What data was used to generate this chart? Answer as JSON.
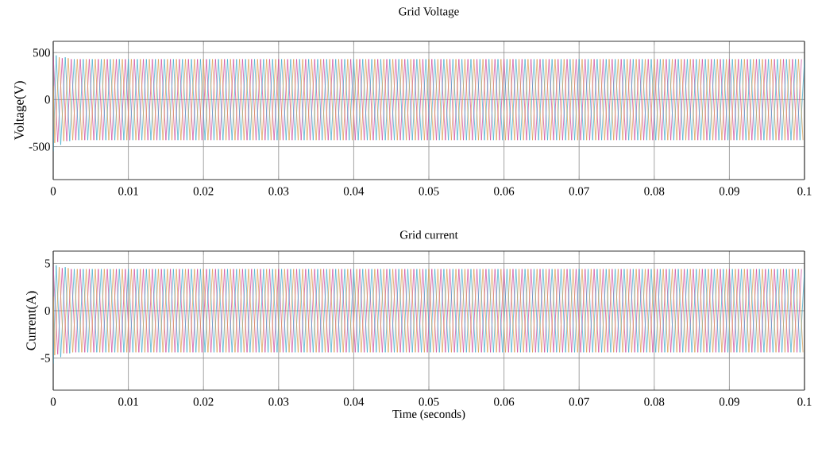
{
  "chart_data": [
    {
      "type": "line",
      "title": "Grid Voltage",
      "ylabel": "Voltage(V)",
      "xlim": [
        0,
        0.1
      ],
      "ylim": [
        -850,
        620
      ],
      "xticks": [
        0,
        0.01,
        0.02,
        0.03,
        0.04,
        0.05,
        0.06,
        0.07,
        0.08,
        0.09,
        0.1
      ],
      "yticks": [
        -500,
        0,
        500
      ],
      "grid": true,
      "series": [
        {
          "color": "#cc4499",
          "x": [
            0,
            0.0006,
            0.0012,
            0.0018,
            0.0024,
            0.003,
            0.0036,
            0.0042,
            0.0048,
            0.0054,
            0.006,
            0.0066,
            0.0072,
            0.0078,
            0.0084,
            0.009,
            0.0096,
            0.0102,
            0.0108,
            0.0114,
            0.012,
            0.0126,
            0.0132,
            0.0138,
            0.0144,
            0.015,
            0.0156,
            0.0162,
            0.0168,
            0.0174,
            0.018,
            0.0186,
            0.0192,
            0.0198,
            0.0204,
            0.021,
            0.0216,
            0.0222,
            0.0228,
            0.0234,
            0.024,
            0.0246,
            0.0252,
            0.0258,
            0.0264,
            0.027,
            0.0276,
            0.0282,
            0.0288,
            0.0294,
            0.03,
            0.0306,
            0.0312,
            0.0318,
            0.0324,
            0.033,
            0.0336,
            0.0342,
            0.0348,
            0.0354,
            0.036,
            0.0366,
            0.0372,
            0.0378,
            0.0384,
            0.039,
            0.0396,
            0.0402,
            0.0408,
            0.0414,
            0.042,
            0.0426,
            0.0432,
            0.0438,
            0.0444,
            0.045,
            0.0456,
            0.0462,
            0.0468,
            0.0474,
            0.048,
            0.0486,
            0.0492,
            0.0498,
            0.0504,
            0.051,
            0.0516,
            0.0522,
            0.0528,
            0.0534,
            0.054,
            0.0546,
            0.0552,
            0.0558,
            0.0564,
            0.057,
            0.0576,
            0.0582,
            0.0588,
            0.0594,
            0.06,
            0.0606,
            0.0612,
            0.0618,
            0.0624,
            0.063,
            0.0636,
            0.0642,
            0.0648,
            0.0654,
            0.066,
            0.0666,
            0.0672,
            0.0678,
            0.0684,
            0.069,
            0.0696,
            0.0702,
            0.0708,
            0.0714,
            0.072,
            0.0726,
            0.0732,
            0.0738,
            0.0744,
            0.075,
            0.0756,
            0.0762,
            0.0768,
            0.0774,
            0.078,
            0.0786,
            0.0792,
            0.0798,
            0.0804,
            0.081,
            0.0816,
            0.0822,
            0.0828,
            0.0834,
            0.084,
            0.0846,
            0.0852,
            0.0858,
            0.0864,
            0.087,
            0.0876,
            0.0882,
            0.0888,
            0.0894,
            0.09,
            0.0906,
            0.0912,
            0.0918,
            0.0924,
            0.093,
            0.0936,
            0.0942,
            0.0948,
            0.0954,
            0.096,
            0.0966,
            0.0972,
            0.0978,
            0.0984,
            0.099,
            0.0996
          ],
          "values": [
            460,
            -450,
            440,
            -440,
            430,
            -430,
            430,
            -430,
            430,
            -430,
            430,
            -430,
            430,
            -430,
            430,
            -430,
            430,
            -430,
            430,
            -430,
            430,
            -430,
            430,
            -430,
            430,
            -430,
            430,
            -430,
            430,
            -430,
            430,
            -430,
            430,
            -430,
            430,
            -430,
            430,
            -430,
            430,
            -430,
            430,
            -430,
            430,
            -430,
            430,
            -430,
            430,
            -430,
            430,
            -430,
            430,
            -430,
            430,
            -430,
            430,
            -430,
            430,
            -430,
            430,
            -430,
            430,
            -430,
            430,
            -430,
            430,
            -430,
            430,
            -430,
            430,
            -430,
            430,
            -430,
            430,
            -430,
            430,
            -430,
            430,
            -430,
            430,
            -430,
            430,
            -430,
            430,
            -430,
            430,
            -430,
            430,
            -430,
            430,
            -430,
            430,
            -430,
            430,
            -430,
            430,
            -430,
            430,
            -430,
            430,
            -430,
            430,
            -430,
            430,
            -430,
            430,
            -430,
            430,
            -430,
            430,
            -430,
            430,
            -430,
            430,
            -430,
            430,
            -430,
            430,
            -430,
            430,
            -430,
            430,
            -430,
            430,
            -430,
            430,
            -430,
            430,
            -430,
            430,
            -430,
            430,
            -430,
            430,
            -430,
            430,
            -430,
            430,
            -430,
            430,
            -430,
            430,
            -430,
            430,
            -430,
            430,
            -430,
            430,
            -430,
            430,
            -430,
            430,
            -430,
            430,
            -430,
            430,
            -430,
            430,
            -430,
            430,
            -430,
            430,
            -430,
            430,
            -430,
            430,
            -430,
            430
          ]
        },
        {
          "color": "#3aa8c8",
          "x": [
            0,
            0.0004,
            0.001,
            0.0016,
            0.0022,
            0.0028,
            0.0034,
            0.004,
            0.0046,
            0.0052,
            0.0058,
            0.0064,
            0.007,
            0.0076,
            0.0082,
            0.0088,
            0.0094,
            0.01,
            0.0106,
            0.0112,
            0.0118,
            0.0124,
            0.013,
            0.0136,
            0.0142,
            0.0148,
            0.0154,
            0.016,
            0.0166,
            0.0172,
            0.0178,
            0.0184,
            0.019,
            0.0196,
            0.0202,
            0.0208,
            0.0214,
            0.022,
            0.0226,
            0.0232,
            0.0238,
            0.0244,
            0.025,
            0.0256,
            0.0262,
            0.0268,
            0.0274,
            0.028,
            0.0286,
            0.0292,
            0.0298,
            0.0304,
            0.031,
            0.0316,
            0.0322,
            0.0328,
            0.0334,
            0.034,
            0.0346,
            0.0352,
            0.0358,
            0.0364,
            0.037,
            0.0376,
            0.0382,
            0.0388,
            0.0394,
            0.04,
            0.0406,
            0.0412,
            0.0418,
            0.0424,
            0.043,
            0.0436,
            0.0442,
            0.0448,
            0.0454,
            0.046,
            0.0466,
            0.0472,
            0.0478,
            0.0484,
            0.049,
            0.0496,
            0.0502,
            0.0508,
            0.0514,
            0.052,
            0.0526,
            0.0532,
            0.0538,
            0.0544,
            0.055,
            0.0556,
            0.0562,
            0.0568,
            0.0574,
            0.058,
            0.0586,
            0.0592,
            0.0598,
            0.0604,
            0.061,
            0.0616,
            0.0622,
            0.0628,
            0.0634,
            0.064,
            0.0646,
            0.0652,
            0.0658,
            0.0664,
            0.067,
            0.0676,
            0.0682,
            0.0688,
            0.0694,
            0.07,
            0.0706,
            0.0712,
            0.0718,
            0.0724,
            0.073,
            0.0736,
            0.0742,
            0.0748,
            0.0754,
            0.076,
            0.0766,
            0.0772,
            0.0778,
            0.0784,
            0.079,
            0.0796,
            0.0802,
            0.0808,
            0.0814,
            0.082,
            0.0826,
            0.0832,
            0.0838,
            0.0844,
            0.085,
            0.0856,
            0.0862,
            0.0868,
            0.0874,
            0.088,
            0.0886,
            0.0892,
            0.0898,
            0.0904,
            0.091,
            0.0916,
            0.0922,
            0.0928,
            0.0934,
            0.094,
            0.0946,
            0.0952,
            0.0958,
            0.0964,
            0.097,
            0.0976,
            0.0982,
            0.0988,
            0.0994,
            0.1
          ],
          "values": [
            -550,
            470,
            -480,
            450,
            -440,
            430,
            -430,
            430,
            -430,
            430,
            -430,
            430,
            -430,
            430,
            -430,
            430,
            -430,
            430,
            -430,
            430,
            -430,
            430,
            -430,
            430,
            -430,
            430,
            -430,
            430,
            -430,
            430,
            -430,
            430,
            -430,
            430,
            -430,
            430,
            -430,
            430,
            -430,
            430,
            -430,
            430,
            -430,
            430,
            -430,
            430,
            -430,
            430,
            -430,
            430,
            -430,
            430,
            -430,
            430,
            -430,
            430,
            -430,
            430,
            -430,
            430,
            -430,
            430,
            -430,
            430,
            -430,
            430,
            -430,
            430,
            -430,
            430,
            -430,
            430,
            -430,
            430,
            -430,
            430,
            -430,
            430,
            -430,
            430,
            -430,
            430,
            -430,
            430,
            -430,
            430,
            -430,
            430,
            -430,
            430,
            -430,
            430,
            -430,
            430,
            -430,
            430,
            -430,
            430,
            -430,
            430,
            -430,
            430,
            -430,
            430,
            -430,
            430,
            -430,
            430,
            -430,
            430,
            -430,
            430,
            -430,
            430,
            -430,
            430,
            -430,
            430,
            -430,
            430,
            -430,
            430,
            -430,
            430,
            -430,
            430,
            -430,
            430,
            -430,
            430,
            -430,
            430,
            -430,
            430,
            -430,
            430,
            -430,
            430,
            -430,
            430,
            -430,
            430,
            -430,
            430,
            -430,
            430,
            -430,
            430,
            -430,
            430,
            -430,
            430,
            -430,
            430,
            -430,
            430,
            -430,
            430,
            -430,
            430,
            -430,
            430,
            -430,
            430,
            -430,
            430,
            -430,
            430
          ]
        },
        {
          "color": "#d89a4a",
          "x": [
            0,
            0.0002,
            0.0008,
            0.0014,
            0.002,
            0.0026,
            0.0032,
            0.0038,
            0.0044,
            0.005,
            0.0056,
            0.0062,
            0.0068,
            0.0074,
            0.008,
            0.0086,
            0.0092,
            0.0098,
            0.0104,
            0.011,
            0.0116,
            0.0122,
            0.0128,
            0.0134,
            0.014,
            0.0146,
            0.0152,
            0.0158,
            0.0164,
            0.017,
            0.0176,
            0.0182,
            0.0188,
            0.0194,
            0.02,
            0.0206,
            0.0212,
            0.0218,
            0.0224,
            0.023,
            0.0236,
            0.0242,
            0.0248,
            0.0254,
            0.026,
            0.0266,
            0.0272,
            0.0278,
            0.0284,
            0.029,
            0.0296,
            0.0302,
            0.0308,
            0.0314,
            0.032,
            0.0326,
            0.0332,
            0.0338,
            0.0344,
            0.035,
            0.0356,
            0.0362,
            0.0368,
            0.0374,
            0.038,
            0.0386,
            0.0392,
            0.0398,
            0.0404,
            0.041,
            0.0416,
            0.0422,
            0.0428,
            0.0434,
            0.044,
            0.0446,
            0.0452,
            0.0458,
            0.0464,
            0.047,
            0.0476,
            0.0482,
            0.0488,
            0.0494,
            0.05,
            0.0506,
            0.0512,
            0.0518,
            0.0524,
            0.053,
            0.0536,
            0.0542,
            0.0548,
            0.0554,
            0.056,
            0.0566,
            0.0572,
            0.0578,
            0.0584,
            0.059,
            0.0596,
            0.0602,
            0.0608,
            0.0614,
            0.062,
            0.0626,
            0.0632,
            0.0638,
            0.0644,
            0.065,
            0.0656,
            0.0662,
            0.0668,
            0.0674,
            0.068,
            0.0686,
            0.0692,
            0.0698,
            0.0704,
            0.071,
            0.0716,
            0.0722,
            0.0728,
            0.0734,
            0.074,
            0.0746,
            0.0752,
            0.0758,
            0.0764,
            0.077,
            0.0776,
            0.0782,
            0.0788,
            0.0794,
            0.08,
            0.0806,
            0.0812,
            0.0818,
            0.0824,
            0.083,
            0.0836,
            0.0842,
            0.0848,
            0.0854,
            0.086,
            0.0866,
            0.0872,
            0.0878,
            0.0884,
            0.089,
            0.0896,
            0.0902,
            0.0908,
            0.0914,
            0.092,
            0.0926,
            0.0932,
            0.0938,
            0.0944,
            0.095,
            0.0956,
            0.0962,
            0.0968,
            0.0974,
            0.098,
            0.0986,
            0.0992,
            0.0998
          ],
          "values": [
            150,
            -460,
            450,
            -440,
            440,
            -430,
            430,
            -430,
            430,
            -430,
            430,
            -430,
            430,
            -430,
            430,
            -430,
            430,
            -430,
            430,
            -430,
            430,
            -430,
            430,
            -430,
            430,
            -430,
            430,
            -430,
            430,
            -430,
            430,
            -430,
            430,
            -430,
            430,
            -430,
            430,
            -430,
            430,
            -430,
            430,
            -430,
            430,
            -430,
            430,
            -430,
            430,
            -430,
            430,
            -430,
            430,
            -430,
            430,
            -430,
            430,
            -430,
            430,
            -430,
            430,
            -430,
            430,
            -430,
            430,
            -430,
            430,
            -430,
            430,
            -430,
            430,
            -430,
            430,
            -430,
            430,
            -430,
            430,
            -430,
            430,
            -430,
            430,
            -430,
            430,
            -430,
            430,
            -430,
            430,
            -430,
            430,
            -430,
            430,
            -430,
            430,
            -430,
            430,
            -430,
            430,
            -430,
            430,
            -430,
            430,
            -430,
            430,
            -430,
            430,
            -430,
            430,
            -430,
            430,
            -430,
            430,
            -430,
            430,
            -430,
            430,
            -430,
            430,
            -430,
            430,
            -430,
            430,
            -430,
            430,
            -430,
            430,
            -430,
            430,
            -430,
            430,
            -430,
            430,
            -430,
            430,
            -430,
            430,
            -430,
            430,
            -430,
            430,
            -430,
            430,
            -430,
            430,
            -430,
            430,
            -430,
            430,
            -430,
            430,
            -430,
            430,
            -430,
            430,
            -430,
            430,
            -430,
            430,
            -430,
            430,
            -430,
            430,
            -430,
            430,
            -430,
            430,
            -430,
            430,
            -430,
            430,
            -430
          ]
        }
      ]
    },
    {
      "type": "line",
      "title": "Grid current",
      "ylabel": "Current(A)",
      "xlabel": "Time (seconds)",
      "xlim": [
        0,
        0.1
      ],
      "ylim": [
        -8.4,
        6.3
      ],
      "xticks": [
        0,
        0.01,
        0.02,
        0.03,
        0.04,
        0.05,
        0.06,
        0.07,
        0.08,
        0.09,
        0.1
      ],
      "yticks": [
        -5,
        0,
        5
      ],
      "grid": true,
      "series": [
        {
          "color": "#cc4499",
          "x": [
            0,
            0.0006,
            0.0012,
            0.0018,
            0.0024,
            0.003,
            0.0036,
            0.0042,
            0.0048,
            0.0054,
            0.006,
            0.0066,
            0.0072,
            0.0078,
            0.0084,
            0.009,
            0.0096,
            0.0102,
            0.0108,
            0.0114,
            0.012,
            0.0126,
            0.0132,
            0.0138,
            0.0144,
            0.015,
            0.0156,
            0.0162,
            0.0168,
            0.0174,
            0.018,
            0.0186,
            0.0192,
            0.0198,
            0.0204,
            0.021,
            0.0216,
            0.0222,
            0.0228,
            0.0234,
            0.024,
            0.0246,
            0.0252,
            0.0258,
            0.0264,
            0.027,
            0.0276,
            0.0282,
            0.0288,
            0.0294,
            0.03,
            0.0306,
            0.0312,
            0.0318,
            0.0324,
            0.033,
            0.0336,
            0.0342,
            0.0348,
            0.0354,
            0.036,
            0.0366,
            0.0372,
            0.0378,
            0.0384,
            0.039,
            0.0396,
            0.0402,
            0.0408,
            0.0414,
            0.042,
            0.0426,
            0.0432,
            0.0438,
            0.0444,
            0.045,
            0.0456,
            0.0462,
            0.0468,
            0.0474,
            0.048,
            0.0486,
            0.0492,
            0.0498,
            0.0504,
            0.051,
            0.0516,
            0.0522,
            0.0528,
            0.0534,
            0.054,
            0.0546,
            0.0552,
            0.0558,
            0.0564,
            0.057,
            0.0576,
            0.0582,
            0.0588,
            0.0594,
            0.06,
            0.0606,
            0.0612,
            0.0618,
            0.0624,
            0.063,
            0.0636,
            0.0642,
            0.0648,
            0.0654,
            0.066,
            0.0666,
            0.0672,
            0.0678,
            0.0684,
            0.069,
            0.0696,
            0.0702,
            0.0708,
            0.0714,
            0.072,
            0.0726,
            0.0732,
            0.0738,
            0.0744,
            0.075,
            0.0756,
            0.0762,
            0.0768,
            0.0774,
            0.078,
            0.0786,
            0.0792,
            0.0798,
            0.0804,
            0.081,
            0.0816,
            0.0822,
            0.0828,
            0.0834,
            0.084,
            0.0846,
            0.0852,
            0.0858,
            0.0864,
            0.087,
            0.0876,
            0.0882,
            0.0888,
            0.0894,
            0.09,
            0.0906,
            0.0912,
            0.0918,
            0.0924,
            0.093,
            0.0936,
            0.0942,
            0.0948,
            0.0954,
            0.096,
            0.0966,
            0.0972,
            0.0978,
            0.0984,
            0.099,
            0.0996
          ],
          "values": [
            4.7,
            -4.6,
            4.5,
            -4.5,
            4.4,
            -4.4,
            4.4,
            -4.4,
            4.4,
            -4.4,
            4.4,
            -4.4,
            4.4,
            -4.4,
            4.4,
            -4.4,
            4.4,
            -4.4,
            4.4,
            -4.4,
            4.4,
            -4.4,
            4.4,
            -4.4,
            4.4,
            -4.4,
            4.4,
            -4.4,
            4.4,
            -4.4,
            4.4,
            -4.4,
            4.4,
            -4.4,
            4.4,
            -4.4,
            4.4,
            -4.4,
            4.4,
            -4.4,
            4.4,
            -4.4,
            4.4,
            -4.4,
            4.4,
            -4.4,
            4.4,
            -4.4,
            4.4,
            -4.4,
            4.4,
            -4.4,
            4.4,
            -4.4,
            4.4,
            -4.4,
            4.4,
            -4.4,
            4.4,
            -4.4,
            4.4,
            -4.4,
            4.4,
            -4.4,
            4.4,
            -4.4,
            4.4,
            -4.4,
            4.4,
            -4.4,
            4.4,
            -4.4,
            4.4,
            -4.4,
            4.4,
            -4.4,
            4.4,
            -4.4,
            4.4,
            -4.4,
            4.4,
            -4.4,
            4.4,
            -4.4,
            4.4,
            -4.4,
            4.4,
            -4.4,
            4.4,
            -4.4,
            4.4,
            -4.4,
            4.4,
            -4.4,
            4.4,
            -4.4,
            4.4,
            -4.4,
            4.4,
            -4.4,
            4.4,
            -4.4,
            4.4,
            -4.4,
            4.4,
            -4.4,
            4.4,
            -4.4,
            4.4,
            -4.4,
            4.4,
            -4.4,
            4.4,
            -4.4,
            4.4,
            -4.4,
            4.4,
            -4.4,
            4.4,
            -4.4,
            4.4,
            -4.4,
            4.4,
            -4.4,
            4.4,
            -4.4,
            4.4,
            -4.4,
            4.4,
            -4.4,
            4.4,
            -4.4,
            4.4,
            -4.4,
            4.4,
            -4.4,
            4.4,
            -4.4,
            4.4,
            -4.4,
            4.4,
            -4.4,
            4.4,
            -4.4,
            4.4,
            -4.4,
            4.4,
            -4.4,
            4.4,
            -4.4,
            4.4,
            -4.4,
            4.4,
            -4.4,
            4.4,
            -4.4,
            4.4,
            -4.4,
            4.4,
            -4.4,
            4.4,
            -4.4,
            4.4,
            -4.4,
            4.4,
            -4.4,
            4.4
          ]
        },
        {
          "color": "#3aa8c8",
          "x": [
            0,
            0.0004,
            0.001,
            0.0016,
            0.0022,
            0.0028,
            0.0034,
            0.004,
            0.0046,
            0.0052,
            0.0058,
            0.0064,
            0.007,
            0.0076,
            0.0082,
            0.0088,
            0.0094,
            0.01,
            0.0106,
            0.0112,
            0.0118,
            0.0124,
            0.013,
            0.0136,
            0.0142,
            0.0148,
            0.0154,
            0.016,
            0.0166,
            0.0172,
            0.0178,
            0.0184,
            0.019,
            0.0196,
            0.0202,
            0.0208,
            0.0214,
            0.022,
            0.0226,
            0.0232,
            0.0238,
            0.0244,
            0.025,
            0.0256,
            0.0262,
            0.0268,
            0.0274,
            0.028,
            0.0286,
            0.0292,
            0.0298,
            0.0304,
            0.031,
            0.0316,
            0.0322,
            0.0328,
            0.0334,
            0.034,
            0.0346,
            0.0352,
            0.0358,
            0.0364,
            0.037,
            0.0376,
            0.0382,
            0.0388,
            0.0394,
            0.04,
            0.0406,
            0.0412,
            0.0418,
            0.0424,
            0.043,
            0.0436,
            0.0442,
            0.0448,
            0.0454,
            0.046,
            0.0466,
            0.0472,
            0.0478,
            0.0484,
            0.049,
            0.0496,
            0.0502,
            0.0508,
            0.0514,
            0.052,
            0.0526,
            0.0532,
            0.0538,
            0.0544,
            0.055,
            0.0556,
            0.0562,
            0.0568,
            0.0574,
            0.058,
            0.0586,
            0.0592,
            0.0598,
            0.0604,
            0.061,
            0.0616,
            0.0622,
            0.0628,
            0.0634,
            0.064,
            0.0646,
            0.0652,
            0.0658,
            0.0664,
            0.067,
            0.0676,
            0.0682,
            0.0688,
            0.0694,
            0.07,
            0.0706,
            0.0712,
            0.0718,
            0.0724,
            0.073,
            0.0736,
            0.0742,
            0.0748,
            0.0754,
            0.076,
            0.0766,
            0.0772,
            0.0778,
            0.0784,
            0.079,
            0.0796,
            0.0802,
            0.0808,
            0.0814,
            0.082,
            0.0826,
            0.0832,
            0.0838,
            0.0844,
            0.085,
            0.0856,
            0.0862,
            0.0868,
            0.0874,
            0.088,
            0.0886,
            0.0892,
            0.0898,
            0.0904,
            0.091,
            0.0916,
            0.0922,
            0.0928,
            0.0934,
            0.094,
            0.0946,
            0.0952,
            0.0958,
            0.0964,
            0.097,
            0.0976,
            0.0982,
            0.0988,
            0.0994,
            0.1
          ],
          "values": [
            -5.6,
            4.8,
            -4.9,
            4.6,
            -4.5,
            4.4,
            -4.4,
            4.4,
            -4.4,
            4.4,
            -4.4,
            4.4,
            -4.4,
            4.4,
            -4.4,
            4.4,
            -4.4,
            4.4,
            -4.4,
            4.4,
            -4.4,
            4.4,
            -4.4,
            4.4,
            -4.4,
            4.4,
            -4.4,
            4.4,
            -4.4,
            4.4,
            -4.4,
            4.4,
            -4.4,
            4.4,
            -4.4,
            4.4,
            -4.4,
            4.4,
            -4.4,
            4.4,
            -4.4,
            4.4,
            -4.4,
            4.4,
            -4.4,
            4.4,
            -4.4,
            4.4,
            -4.4,
            4.4,
            -4.4,
            4.4,
            -4.4,
            4.4,
            -4.4,
            4.4,
            -4.4,
            4.4,
            -4.4,
            4.4,
            -4.4,
            4.4,
            -4.4,
            4.4,
            -4.4,
            4.4,
            -4.4,
            4.4,
            -4.4,
            4.4,
            -4.4,
            4.4,
            -4.4,
            4.4,
            -4.4,
            4.4,
            -4.4,
            4.4,
            -4.4,
            4.4,
            -4.4,
            4.4,
            -4.4,
            4.4,
            -4.4,
            4.4,
            -4.4,
            4.4,
            -4.4,
            4.4,
            -4.4,
            4.4,
            -4.4,
            4.4,
            -4.4,
            4.4,
            -4.4,
            4.4,
            -4.4,
            4.4,
            -4.4,
            4.4,
            -4.4,
            4.4,
            -4.4,
            4.4,
            -4.4,
            4.4,
            -4.4,
            4.4,
            -4.4,
            4.4,
            -4.4,
            4.4,
            -4.4,
            4.4,
            -4.4,
            4.4,
            -4.4,
            4.4,
            -4.4,
            4.4,
            -4.4,
            4.4,
            -4.4,
            4.4,
            -4.4,
            4.4,
            -4.4,
            4.4,
            -4.4,
            4.4,
            -4.4,
            4.4,
            -4.4,
            4.4,
            -4.4,
            4.4,
            -4.4,
            4.4,
            -4.4,
            4.4,
            -4.4,
            4.4,
            -4.4,
            4.4,
            -4.4,
            4.4,
            -4.4,
            4.4,
            -4.4,
            4.4,
            -4.4,
            4.4,
            -4.4,
            4.4,
            -4.4,
            4.4,
            -4.4,
            4.4,
            -4.4,
            4.4,
            -4.4,
            4.4,
            -4.4,
            4.4,
            -4.4,
            4.4
          ]
        },
        {
          "color": "#d89a4a",
          "x": [
            0,
            0.0002,
            0.0008,
            0.0014,
            0.002,
            0.0026,
            0.0032,
            0.0038,
            0.0044,
            0.005,
            0.0056,
            0.0062,
            0.0068,
            0.0074,
            0.008,
            0.0086,
            0.0092,
            0.0098,
            0.0104,
            0.011,
            0.0116,
            0.0122,
            0.0128,
            0.0134,
            0.014,
            0.0146,
            0.0152,
            0.0158,
            0.0164,
            0.017,
            0.0176,
            0.0182,
            0.0188,
            0.0194,
            0.02,
            0.0206,
            0.0212,
            0.0218,
            0.0224,
            0.023,
            0.0236,
            0.0242,
            0.0248,
            0.0254,
            0.026,
            0.0266,
            0.0272,
            0.0278,
            0.0284,
            0.029,
            0.0296,
            0.0302,
            0.0308,
            0.0314,
            0.032,
            0.0326,
            0.0332,
            0.0338,
            0.0344,
            0.035,
            0.0356,
            0.0362,
            0.0368,
            0.0374,
            0.038,
            0.0386,
            0.0392,
            0.0398,
            0.0404,
            0.041,
            0.0416,
            0.0422,
            0.0428,
            0.0434,
            0.044,
            0.0446,
            0.0452,
            0.0458,
            0.0464,
            0.047,
            0.0476,
            0.0482,
            0.0488,
            0.0494,
            0.05,
            0.0506,
            0.0512,
            0.0518,
            0.0524,
            0.053,
            0.0536,
            0.0542,
            0.0548,
            0.0554,
            0.056,
            0.0566,
            0.0572,
            0.0578,
            0.0584,
            0.059,
            0.0596,
            0.0602,
            0.0608,
            0.0614,
            0.062,
            0.0626,
            0.0632,
            0.0638,
            0.0644,
            0.065,
            0.0656,
            0.0662,
            0.0668,
            0.0674,
            0.068,
            0.0686,
            0.0692,
            0.0698,
            0.0704,
            0.071,
            0.0716,
            0.0722,
            0.0728,
            0.0734,
            0.074,
            0.0746,
            0.0752,
            0.0758,
            0.0764,
            0.077,
            0.0776,
            0.0782,
            0.0788,
            0.0794,
            0.08,
            0.0806,
            0.0812,
            0.0818,
            0.0824,
            0.083,
            0.0836,
            0.0842,
            0.0848,
            0.0854,
            0.086,
            0.0866,
            0.0872,
            0.0878,
            0.0884,
            0.089,
            0.0896,
            0.0902,
            0.0908,
            0.0914,
            0.092,
            0.0926,
            0.0932,
            0.0938,
            0.0944,
            0.095,
            0.0956,
            0.0962,
            0.0968,
            0.0974,
            0.098,
            0.0986,
            0.0992,
            0.0998
          ],
          "values": [
            1.5,
            -4.7,
            4.6,
            -4.5,
            4.5,
            -4.4,
            4.4,
            -4.4,
            4.4,
            -4.4,
            4.4,
            -4.4,
            4.4,
            -4.4,
            4.4,
            -4.4,
            4.4,
            -4.4,
            4.4,
            -4.4,
            4.4,
            -4.4,
            4.4,
            -4.4,
            4.4,
            -4.4,
            4.4,
            -4.4,
            4.4,
            -4.4,
            4.4,
            -4.4,
            4.4,
            -4.4,
            4.4,
            -4.4,
            4.4,
            -4.4,
            4.4,
            -4.4,
            4.4,
            -4.4,
            4.4,
            -4.4,
            4.4,
            -4.4,
            4.4,
            -4.4,
            4.4,
            -4.4,
            4.4,
            -4.4,
            4.4,
            -4.4,
            4.4,
            -4.4,
            4.4,
            -4.4,
            4.4,
            -4.4,
            4.4,
            -4.4,
            4.4,
            -4.4,
            4.4,
            -4.4,
            4.4,
            -4.4,
            4.4,
            -4.4,
            4.4,
            -4.4,
            4.4,
            -4.4,
            4.4,
            -4.4,
            4.4,
            -4.4,
            4.4,
            -4.4,
            4.4,
            -4.4,
            4.4,
            -4.4,
            4.4,
            -4.4,
            4.4,
            -4.4,
            4.4,
            -4.4,
            4.4,
            -4.4,
            4.4,
            -4.4,
            4.4,
            -4.4,
            4.4,
            -4.4,
            4.4,
            -4.4,
            4.4,
            -4.4,
            4.4,
            -4.4,
            4.4,
            -4.4,
            4.4,
            -4.4,
            4.4,
            -4.4,
            4.4,
            -4.4,
            4.4,
            -4.4,
            4.4,
            -4.4,
            4.4,
            -4.4,
            4.4,
            -4.4,
            4.4,
            -4.4,
            4.4,
            -4.4,
            4.4,
            -4.4,
            4.4,
            -4.4,
            4.4,
            -4.4,
            4.4,
            -4.4,
            4.4,
            -4.4,
            4.4,
            -4.4,
            4.4,
            -4.4,
            4.4,
            -4.4,
            4.4,
            -4.4,
            4.4,
            -4.4,
            4.4,
            -4.4,
            4.4,
            -4.4,
            4.4,
            -4.4,
            4.4,
            -4.4,
            4.4,
            -4.4,
            4.4,
            -4.4,
            4.4,
            -4.4,
            4.4,
            -4.4,
            4.4,
            -4.4,
            4.4,
            -4.4,
            4.4,
            -4.4,
            4.4,
            -4.4
          ]
        }
      ]
    }
  ]
}
